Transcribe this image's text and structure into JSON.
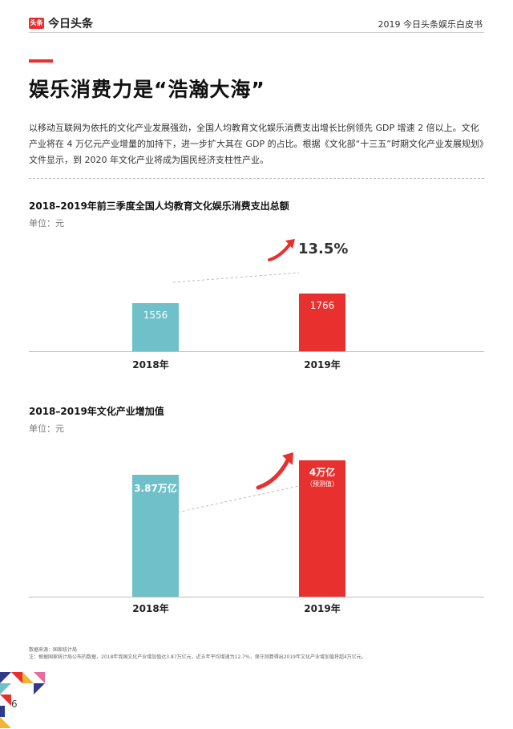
{
  "header": {
    "logo_mark": "头条",
    "logo_text": "今日头条",
    "right_text": "2019 今日头条娱乐白皮书"
  },
  "title": "娱乐消费力是“浩瀚大海”",
  "body_paragraph": "以移动互联网为依托的文化产业发展强劲，全国人均教育文化娱乐消费支出增长比例领先 GDP 增速 2 倍以上。文化产业将在 4 万亿元产业增量的加持下，进一步扩大其在 GDP 的占比。根据《文化部“十三五”时期文化产业发展规划》文件显示，到 2020 年文化产业将成为国民经济支柱性产业。",
  "chart_data": [
    {
      "type": "bar",
      "title": "2018–2019年前三季度全国人均教育文化娱乐消费支出总额",
      "unit": "单位：元",
      "categories": [
        "2018年",
        "2019年"
      ],
      "values": [
        1556,
        1766
      ],
      "value_labels": [
        "1556",
        "1766"
      ],
      "annotation": "13.5%",
      "colors": [
        "#6fc0c8",
        "#e8302e"
      ]
    },
    {
      "type": "bar",
      "title": "2018–2019年文化产业增加值",
      "unit": "单位：元",
      "categories": [
        "2018年",
        "2019年"
      ],
      "values": [
        3.87,
        4
      ],
      "value_labels": [
        "3.87万亿",
        "4万亿"
      ],
      "sub_labels": [
        "",
        "（预测值）"
      ],
      "colors": [
        "#6fc0c8",
        "#e8302e"
      ]
    }
  ],
  "footer": {
    "source": "数据来源：国家统计局",
    "note": "注：根据国家统计局公布的数据，2018年我国文化产业增加值达3.87万亿元，近五年平均增速为12.7%，保守测算得出2019年文化产业增加值将超4万亿元。"
  },
  "page_number": "6",
  "colors": {
    "accent": "#e8302e",
    "teal": "#6fc0c8"
  }
}
